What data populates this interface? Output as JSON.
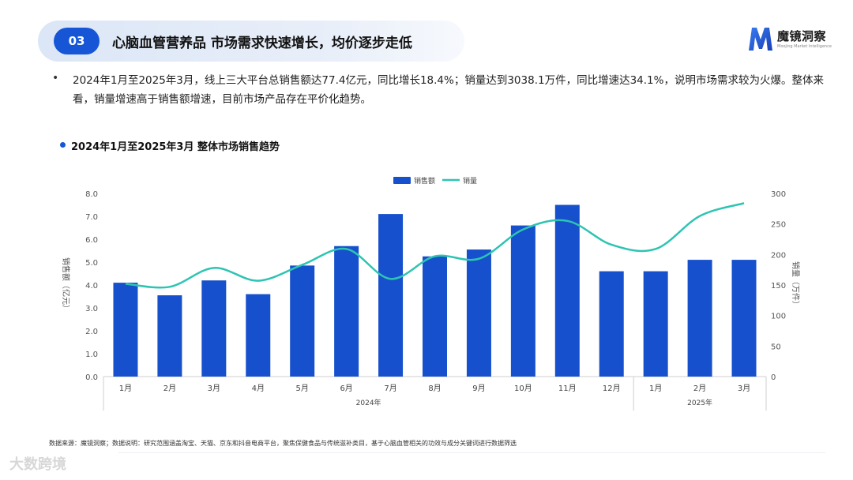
{
  "header": {
    "section_number": "03",
    "title": "心脑血管营养品 市场需求快速增长，均价逐步走低"
  },
  "logo": {
    "name": "魔镜洞察",
    "subtitle": "Moojing Market Intelligence",
    "mark_icon": "moojing-m-logo-icon"
  },
  "summary": {
    "bullet_icon": "bullet-dot-icon",
    "text": "2024年1月至2025年3月，线上三大平台总销售额达77.4亿元，同比增长18.4%；销量达到3038.1万件，同比增速达34.1%，说明市场需求较为火爆。整体来看，销量增速高于销售额增速，目前市场产品存在平价化趋势。"
  },
  "chart_title": "2024年1月至2025年3月 整体市场销售趋势",
  "chart_data": {
    "type": "bar",
    "categories": [
      "1月",
      "2月",
      "3月",
      "4月",
      "5月",
      "6月",
      "7月",
      "8月",
      "9月",
      "10月",
      "11月",
      "12月",
      "1月",
      "2月",
      "3月"
    ],
    "category_groups": [
      {
        "label": "2024年",
        "count": 12
      },
      {
        "label": "2025年",
        "count": 3
      }
    ],
    "series": [
      {
        "name": "销售额",
        "type": "bar",
        "axis": "left",
        "color": "#1650cc",
        "values": [
          4.1,
          3.55,
          4.2,
          3.6,
          4.85,
          5.7,
          7.1,
          5.25,
          5.55,
          6.6,
          7.5,
          4.6,
          4.6,
          5.1,
          5.1
        ]
      },
      {
        "name": "销量",
        "type": "line",
        "axis": "right",
        "color": "#2ec4b2",
        "values": [
          152,
          147,
          178,
          157,
          183,
          209,
          160,
          197,
          193,
          241,
          255,
          216,
          209,
          263,
          284
        ]
      }
    ],
    "y_left": {
      "label": "销售额（亿元）",
      "min": 0,
      "max": 8,
      "step": 1,
      "ticks": [
        "0.0",
        "1.0",
        "2.0",
        "3.0",
        "4.0",
        "5.0",
        "6.0",
        "7.0",
        "8.0"
      ]
    },
    "y_right": {
      "label": "销量（万件）",
      "min": 0,
      "max": 300,
      "step": 50,
      "ticks": [
        "0",
        "50",
        "100",
        "150",
        "200",
        "250",
        "300"
      ]
    },
    "legend": {
      "position": "top-center",
      "items": [
        "销售额",
        "销量"
      ]
    },
    "grid": false
  },
  "footer": {
    "text": "数据来源：魔镜洞察；数据说明：研究范围涵盖淘宝、天猫、京东和抖音电商平台，聚焦保健食品与传统滋补类目，基于心脑血管相关的功效与成分关键词进行数据筛选"
  },
  "watermark": {
    "text": "大数跨境"
  }
}
